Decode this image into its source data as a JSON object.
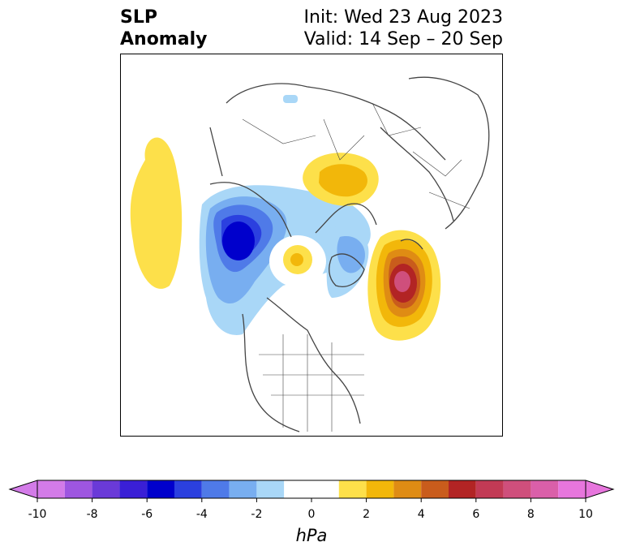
{
  "title": {
    "left_line1": "SLP",
    "left_line2": "Anomaly",
    "right_line1": "Init: Wed 23 Aug 2023",
    "right_line2": "Valid: 14 Sep – 20 Sep"
  },
  "colorbar": {
    "unit": "hPa",
    "range": [
      -10,
      10
    ],
    "ticks": [
      "-10",
      "-8",
      "-6",
      "-4",
      "-2",
      "0",
      "2",
      "4",
      "6",
      "8",
      "10"
    ],
    "tick_values": [
      -10,
      -8,
      -6,
      -4,
      -2,
      0,
      2,
      4,
      6,
      8,
      10
    ],
    "bins": [
      {
        "lo": -10,
        "hi": -9,
        "color": "#d37be8"
      },
      {
        "lo": -9,
        "hi": -8,
        "color": "#9e56e0"
      },
      {
        "lo": -8,
        "hi": -7,
        "color": "#6a3ad8"
      },
      {
        "lo": -7,
        "hi": -6,
        "color": "#3a1fd6"
      },
      {
        "lo": -6,
        "hi": -5,
        "color": "#0000cc"
      },
      {
        "lo": -5,
        "hi": -4,
        "color": "#2b40df"
      },
      {
        "lo": -4,
        "hi": -3,
        "color": "#4f7ae8"
      },
      {
        "lo": -3,
        "hi": -2,
        "color": "#78aef0"
      },
      {
        "lo": -2,
        "hi": -1,
        "color": "#a9d7f7"
      },
      {
        "lo": -1,
        "hi": 1,
        "color": "#ffffff"
      },
      {
        "lo": 1,
        "hi": 2,
        "color": "#fde04a"
      },
      {
        "lo": 2,
        "hi": 3,
        "color": "#f2b70a"
      },
      {
        "lo": 3,
        "hi": 4,
        "color": "#df8c14"
      },
      {
        "lo": 4,
        "hi": 5,
        "color": "#c95c1c"
      },
      {
        "lo": 5,
        "hi": 6,
        "color": "#b22424"
      },
      {
        "lo": 6,
        "hi": 7,
        "color": "#c23a55"
      },
      {
        "lo": 7,
        "hi": 8,
        "color": "#cf4f7c"
      },
      {
        "lo": 8,
        "hi": 9,
        "color": "#da5fa9"
      },
      {
        "lo": 9,
        "hi": 10,
        "color": "#e776dd"
      }
    ],
    "extend_low_color": "#d37be8",
    "extend_high_color": "#e776dd"
  },
  "map": {
    "projection": "north-polar-stereographic",
    "anomaly_features": [
      {
        "name": "pacific-high",
        "peak_hpa": 2,
        "color": "#fde04a"
      },
      {
        "name": "alaska-low",
        "peak_hpa": -6,
        "color": "#0000cc"
      },
      {
        "name": "arctic-high",
        "peak_hpa": 3,
        "color": "#f2b70a"
      },
      {
        "name": "siberia-high",
        "peak_hpa": 3,
        "color": "#f2b70a"
      },
      {
        "name": "atlantic-high",
        "peak_hpa": 7,
        "color": "#c23a55"
      }
    ]
  }
}
